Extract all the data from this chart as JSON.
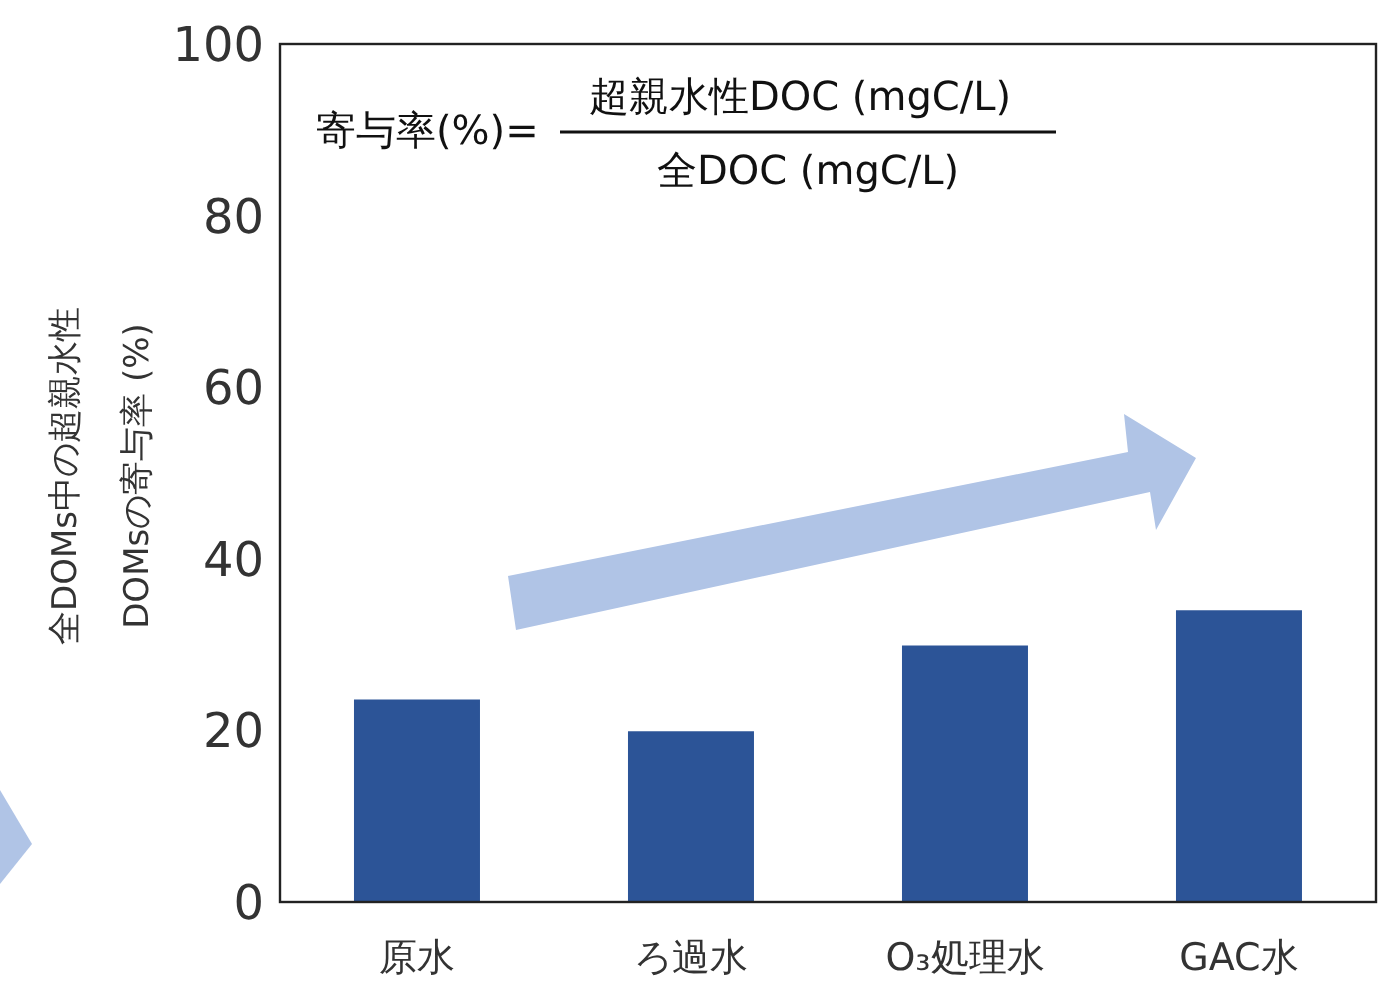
{
  "chart_data": {
    "type": "bar",
    "ylabel": "全DOMs中の超親水性\nDOMsの寄与率 (%)",
    "categories": [
      "原水",
      "ろ過水",
      "O₃処理水",
      "GAC水"
    ],
    "values": [
      23.6,
      19.9,
      29.9,
      34.0
    ],
    "color": "#2c5497",
    "ylim": [
      0,
      100
    ],
    "yticks": [
      0,
      20,
      40,
      60,
      80,
      100
    ],
    "annotations": [
      "寄与率(%)=",
      "超親水性DOC (mgC/L)",
      "全DOC (mgC/L)"
    ]
  }
}
